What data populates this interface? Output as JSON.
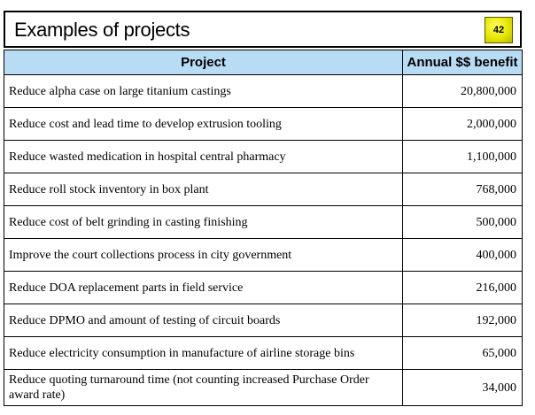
{
  "slide": {
    "title": "Examples of projects",
    "page_number": "42",
    "badge_color": "#e6e600",
    "header_color": "#b8dcf4"
  },
  "table": {
    "headers": [
      "Project",
      "Annual $$ benefit"
    ],
    "rows": [
      {
        "project": "Reduce alpha case on large titanium castings",
        "benefit": "20,800,000"
      },
      {
        "project": "Reduce cost and lead time to develop extrusion tooling",
        "benefit": "2,000,000"
      },
      {
        "project": "Reduce wasted medication in hospital central pharmacy",
        "benefit": "1,100,000"
      },
      {
        "project": "Reduce roll stock inventory in box plant",
        "benefit": "768,000"
      },
      {
        "project": "Reduce cost of belt grinding in casting finishing",
        "benefit": "500,000"
      },
      {
        "project": "Improve the court collections process in city government",
        "benefit": "400,000"
      },
      {
        "project": "Reduce DOA replacement parts in field service",
        "benefit": "216,000"
      },
      {
        "project": "Reduce DPMO and amount of testing of circuit boards",
        "benefit": "192,000"
      },
      {
        "project": "Reduce electricity consumption in manufacture of airline storage bins",
        "benefit": "65,000"
      },
      {
        "project": "Reduce quoting turnaround time (not counting increased Purchase Order award rate)",
        "benefit": "34,000"
      }
    ]
  }
}
